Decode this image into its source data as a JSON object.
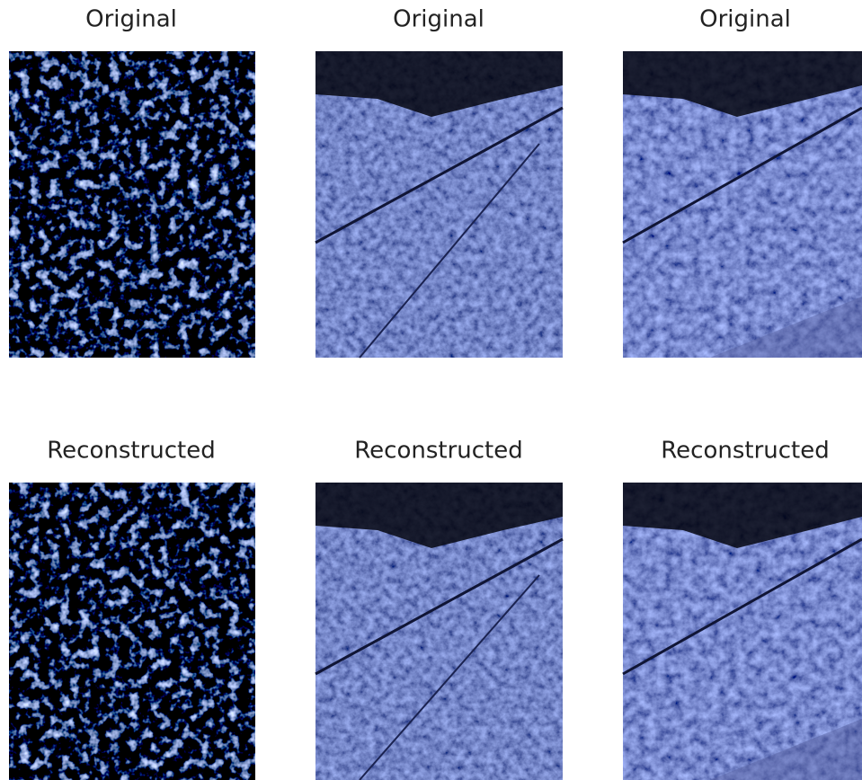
{
  "panels": [
    {
      "title": "Original"
    },
    {
      "title": "Original"
    },
    {
      "title": "Original"
    },
    {
      "title": "Reconstructed"
    },
    {
      "title": "Reconstructed"
    },
    {
      "title": "Reconstructed"
    }
  ]
}
